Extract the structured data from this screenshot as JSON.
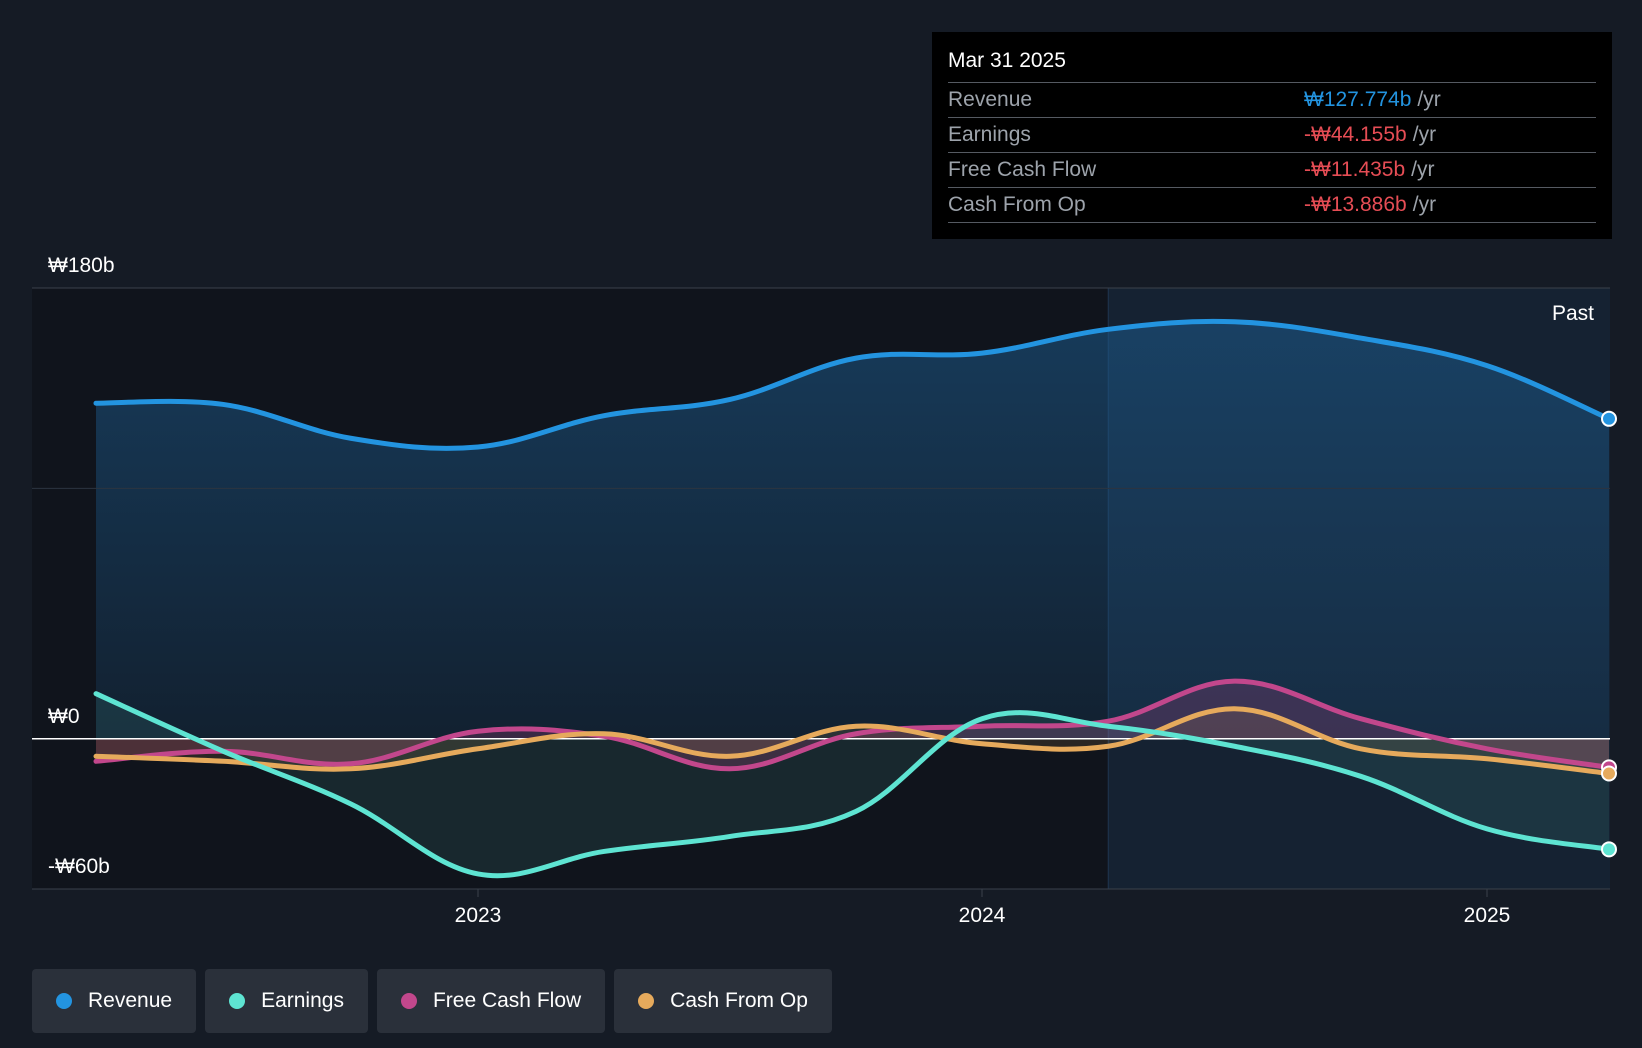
{
  "chart_data": {
    "type": "area",
    "currency": "₩",
    "unit_suffix": "b",
    "ylim": [
      -60,
      180
    ],
    "y_tick_labels": [
      {
        "value": 180,
        "label": "₩180b"
      },
      {
        "value": 0,
        "label": "₩0"
      },
      {
        "value": -60,
        "label": "-₩60b"
      }
    ],
    "x_ticks": [
      {
        "value": 2023.0,
        "label": "2023"
      },
      {
        "value": 2024.0,
        "label": "2024"
      },
      {
        "value": 2025.0,
        "label": "2025"
      }
    ],
    "past_label": "Past",
    "past_from": 2024.25,
    "x": [
      2022.25,
      2022.5,
      2022.75,
      2023.0,
      2023.25,
      2023.5,
      2023.75,
      2024.0,
      2024.25,
      2024.5,
      2024.75,
      2025.0,
      2025.25
    ],
    "series": [
      {
        "name": "Revenue",
        "color": "#2394e0",
        "values": [
          134,
          133.5,
          120,
          116.5,
          129,
          135.5,
          152,
          154,
          163.5,
          166.5,
          160,
          149,
          127.774
        ]
      },
      {
        "name": "Earnings",
        "color": "#5ee4d2",
        "values": [
          18,
          -5,
          -26,
          -54,
          -45,
          -39,
          -29,
          8,
          5,
          -3,
          -15,
          -36,
          -44.155
        ]
      },
      {
        "name": "Free Cash Flow",
        "color": "#c2478c",
        "values": [
          -9,
          -5,
          -10,
          3,
          1,
          -12,
          2,
          5,
          7,
          23,
          8,
          -4,
          -11.435
        ]
      },
      {
        "name": "Cash From Op",
        "color": "#e6aa5c",
        "values": [
          -7,
          -9,
          -12,
          -4,
          2,
          -7,
          5,
          -2,
          -3,
          12,
          -4,
          -8,
          -13.886
        ]
      }
    ]
  },
  "tooltip": {
    "date": "Mar 31 2025",
    "rows": [
      {
        "label": "Revenue",
        "value": "₩127.774b",
        "unit": "/yr",
        "color": "#2394e0"
      },
      {
        "label": "Earnings",
        "value": "-₩44.155b",
        "unit": "/yr",
        "color": "#e64d55"
      },
      {
        "label": "Free Cash Flow",
        "value": "-₩11.435b",
        "unit": "/yr",
        "color": "#e64d55"
      },
      {
        "label": "Cash From Op",
        "value": "-₩13.886b",
        "unit": "/yr",
        "color": "#e64d55"
      }
    ]
  },
  "legend": [
    {
      "label": "Revenue",
      "color": "#2394e0"
    },
    {
      "label": "Earnings",
      "color": "#5ee4d2"
    },
    {
      "label": "Free Cash Flow",
      "color": "#c2478c"
    },
    {
      "label": "Cash From Op",
      "color": "#e6aa5c"
    }
  ]
}
